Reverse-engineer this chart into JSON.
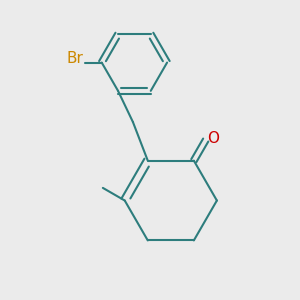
{
  "bg_color": "#ebebeb",
  "bond_color": "#2d7d7d",
  "bond_width": 1.5,
  "br_color": "#cc8800",
  "o_color": "#cc0000",
  "font_size": 11
}
